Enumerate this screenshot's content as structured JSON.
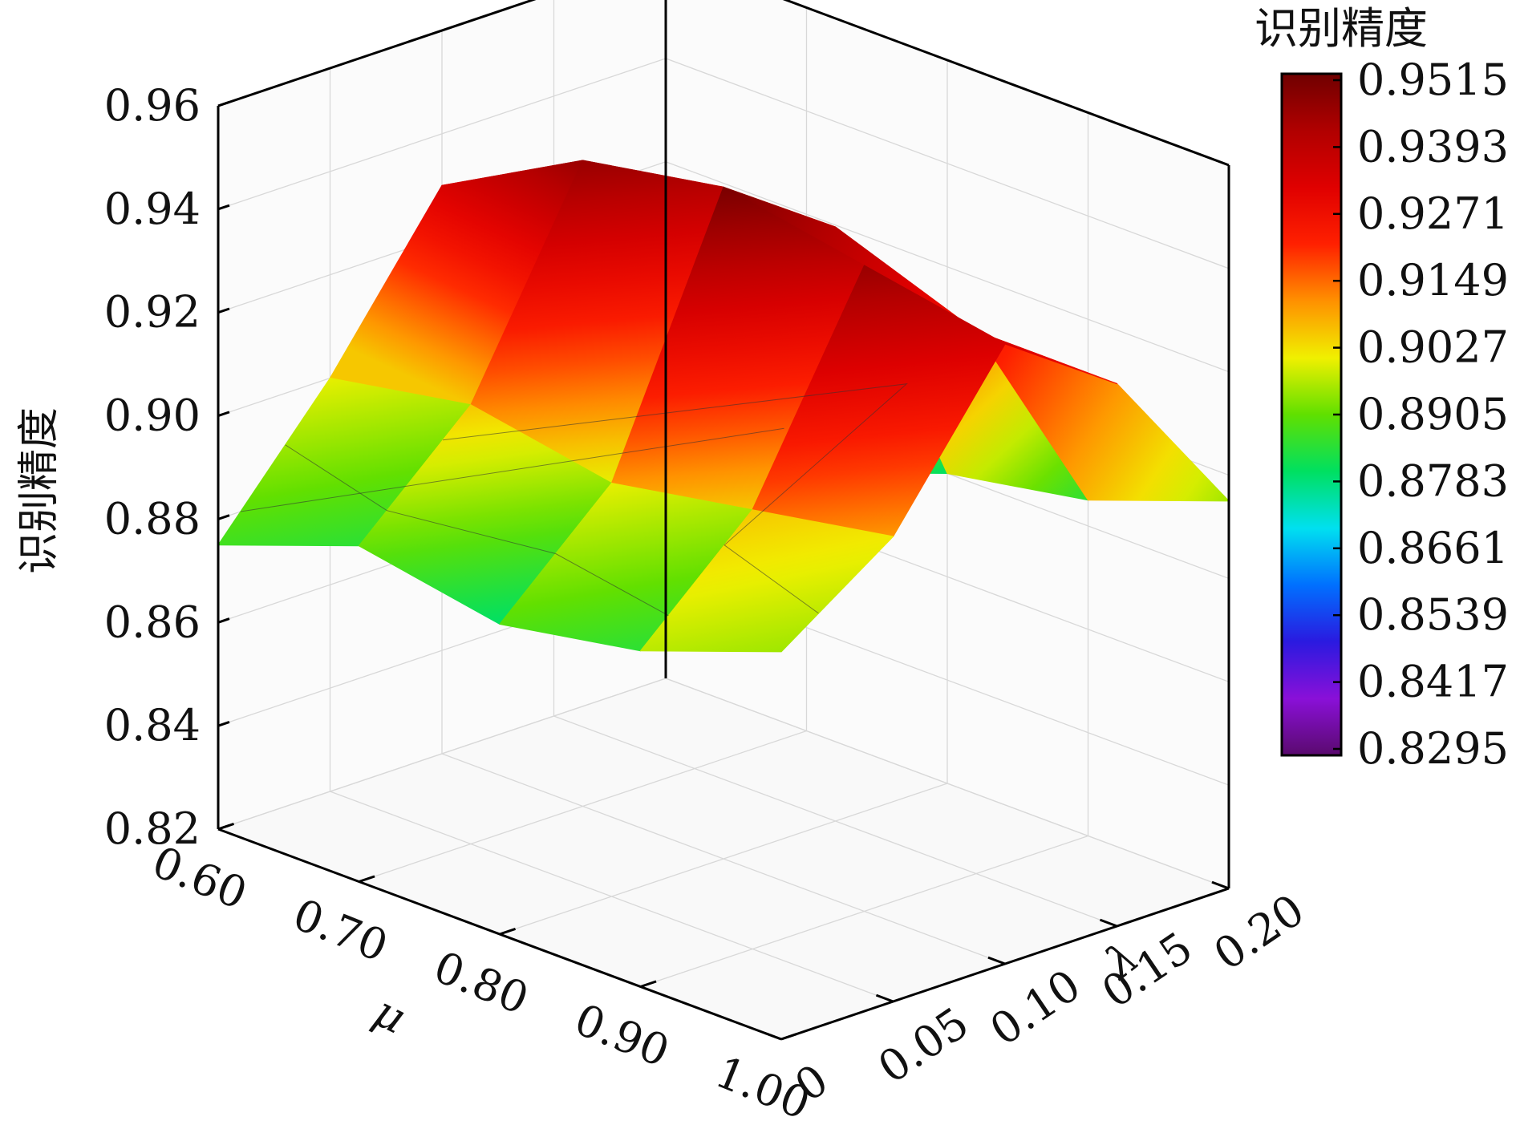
{
  "chart_data": {
    "type": "surface3d",
    "title": "",
    "xlabel": "μ",
    "ylabel": "λ",
    "zlabel": "识别精度",
    "x_ticks": [
      "0.60",
      "0.70",
      "0.80",
      "0.90",
      "1.00"
    ],
    "y_ticks": [
      "0",
      "0.05",
      "0.10",
      "0.15",
      "0.20"
    ],
    "z_ticks": [
      "0.82",
      "0.84",
      "0.86",
      "0.88",
      "0.90",
      "0.92",
      "0.94",
      "0.96"
    ],
    "x": [
      0.6,
      0.7,
      0.8,
      0.9,
      1.0
    ],
    "y": [
      0,
      0.05,
      0.1,
      0.15,
      0.2
    ],
    "zlim": [
      0.82,
      0.96
    ],
    "z": [
      [
        0.875,
        0.885,
        0.88,
        0.885,
        0.895
      ],
      [
        0.9,
        0.905,
        0.9,
        0.905,
        0.91
      ],
      [
        0.93,
        0.945,
        0.95,
        0.945,
        0.94
      ],
      [
        0.9,
        0.92,
        0.935,
        0.925,
        0.925
      ],
      [
        0.86,
        0.87,
        0.88,
        0.885,
        0.895
      ]
    ],
    "colorbar": {
      "title": "识别精度",
      "ticks": [
        "0.9515",
        "0.9393",
        "0.9271",
        "0.9149",
        "0.9027",
        "0.8905",
        "0.8783",
        "0.8661",
        "0.8539",
        "0.8417",
        "0.8295"
      ],
      "range": [
        0.8295,
        0.9515
      ]
    },
    "colormap": [
      "#5a0a6e",
      "#8a10d8",
      "#2a1ae0",
      "#0070ff",
      "#00e0f0",
      "#00e060",
      "#60e000",
      "#f0f000",
      "#ff9000",
      "#ff2000",
      "#e00000",
      "#b00000",
      "#700000"
    ],
    "grid": true,
    "legend": "right"
  }
}
